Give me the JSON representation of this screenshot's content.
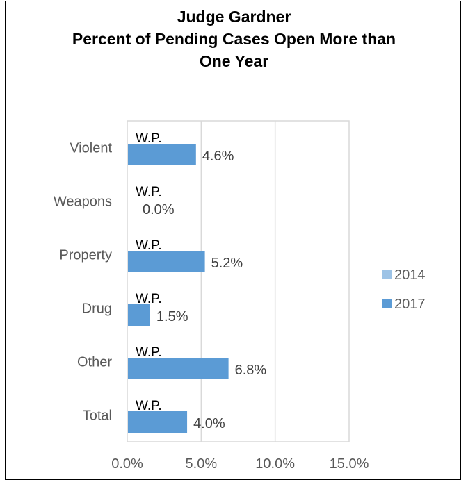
{
  "chart_data": {
    "type": "bar",
    "orientation": "horizontal",
    "title_lines": [
      "Judge Gardner",
      "Percent of Pending Cases Open More than",
      "One Year"
    ],
    "categories": [
      "Violent",
      "Weapons",
      "Property",
      "Drug",
      "Other",
      "Total"
    ],
    "series": [
      {
        "name": "2014",
        "color": "#9dc3e6",
        "values": [
          null,
          null,
          null,
          null,
          null,
          null
        ],
        "labels": [
          "W.P.",
          "W.P.",
          "W.P.",
          "W.P.",
          "W.P.",
          "W.P."
        ]
      },
      {
        "name": "2017",
        "color": "#5b9bd5",
        "values": [
          4.6,
          0.0,
          5.2,
          1.5,
          6.8,
          4.0
        ],
        "labels": [
          "4.6%",
          "0.0%",
          "5.2%",
          "1.5%",
          "6.8%",
          "4.0%"
        ]
      }
    ],
    "x_ticks": [
      "0.0%",
      "5.0%",
      "10.0%",
      "15.0%"
    ],
    "xlim": [
      0,
      15
    ],
    "grid": true,
    "legend_position": "right"
  }
}
